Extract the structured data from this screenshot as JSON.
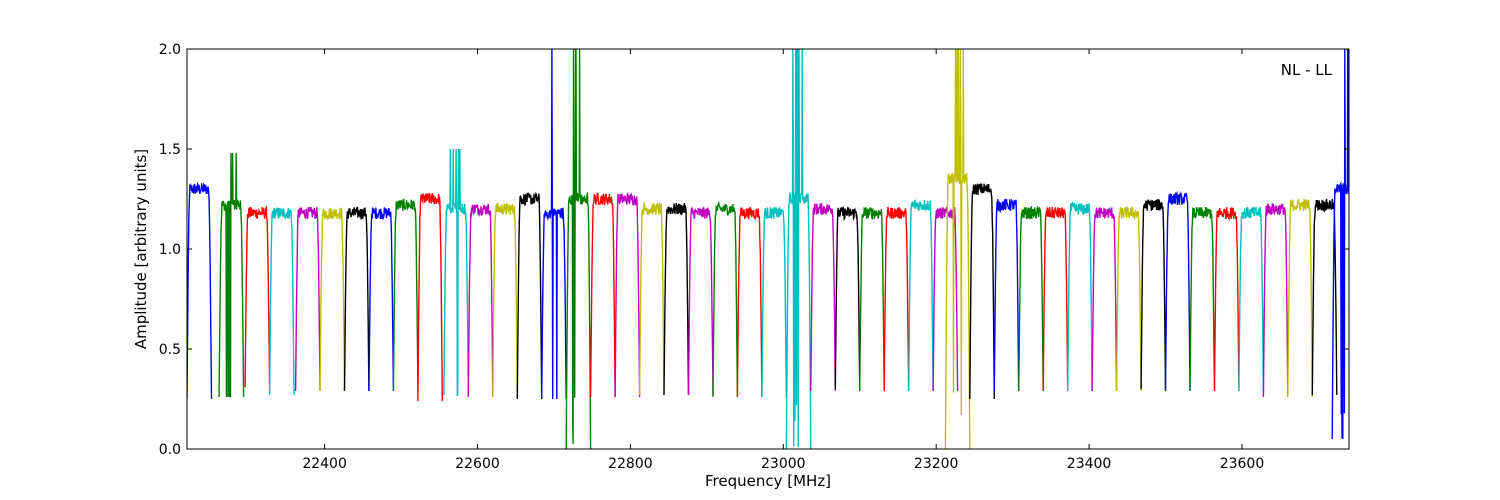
{
  "chart_data": {
    "type": "line",
    "title": "",
    "annotation": "NL - LL",
    "xlabel": "Frequency [MHz]",
    "ylabel": "Amplitude [arbitrary units]",
    "xlim": [
      22220,
      23740
    ],
    "ylim": [
      0.0,
      2.0
    ],
    "xticks": [
      22400,
      22600,
      22800,
      23000,
      23200,
      23400,
      23600
    ],
    "yticks": [
      0.0,
      0.5,
      1.0,
      1.5,
      2.0
    ],
    "xtick_labels": [
      "22400",
      "22600",
      "22800",
      "23000",
      "23200",
      "23400",
      "23600"
    ],
    "ytick_labels": [
      "0.0",
      "0.5",
      "1.0",
      "1.5",
      "2.0"
    ],
    "grid": false,
    "legend": "none",
    "color_cycle": [
      "#0000ff",
      "#008000",
      "#ff0000",
      "#00bfbf",
      "#bf00bf",
      "#bfbf00",
      "#000000"
    ],
    "band_width_mhz": 32,
    "subbands": [
      {
        "color": "blue",
        "start": 22220,
        "level": 1.3,
        "low": 0.25
      },
      {
        "color": "green",
        "start": 22262,
        "level": 1.22,
        "low": 0.26,
        "spike": 1.48
      },
      {
        "color": "red",
        "start": 22296,
        "level": 1.18,
        "low": 0.31
      },
      {
        "color": "cyan",
        "start": 22328,
        "level": 1.18,
        "low": 0.27
      },
      {
        "color": "magenta",
        "start": 22362,
        "level": 1.18,
        "low": 0.29
      },
      {
        "color": "yellow",
        "start": 22394,
        "level": 1.18,
        "low": 0.29
      },
      {
        "color": "black",
        "start": 22426,
        "level": 1.18,
        "low": 0.29
      },
      {
        "color": "blue",
        "start": 22458,
        "level": 1.18,
        "low": 0.29
      },
      {
        "color": "green",
        "start": 22490,
        "level": 1.22,
        "low": 0.29
      },
      {
        "color": "red",
        "start": 22522,
        "level": 1.25,
        "low": 0.24
      },
      {
        "color": "cyan",
        "start": 22556,
        "level": 1.2,
        "low": 0.27,
        "spike": 1.5
      },
      {
        "color": "magenta",
        "start": 22588,
        "level": 1.2,
        "low": 0.26
      },
      {
        "color": "yellow",
        "start": 22620,
        "level": 1.2,
        "low": 0.26
      },
      {
        "color": "black",
        "start": 22652,
        "level": 1.25,
        "low": 0.25
      },
      {
        "color": "blue",
        "start": 22684,
        "level": 1.18,
        "low": 0.25,
        "spike": 2.0
      },
      {
        "color": "green",
        "start": 22716,
        "level": 1.25,
        "low": 0.0,
        "spike": 2.0
      },
      {
        "color": "red",
        "start": 22748,
        "level": 1.25,
        "low": 0.26
      },
      {
        "color": "magenta",
        "start": 22780,
        "level": 1.25,
        "low": 0.26
      },
      {
        "color": "yellow",
        "start": 22812,
        "level": 1.2,
        "low": 0.27
      },
      {
        "color": "black",
        "start": 22844,
        "level": 1.2,
        "low": 0.27
      },
      {
        "color": "magenta",
        "start": 22876,
        "level": 1.18,
        "low": 0.27
      },
      {
        "color": "green",
        "start": 22908,
        "level": 1.2,
        "low": 0.26
      },
      {
        "color": "red",
        "start": 22940,
        "level": 1.18,
        "low": 0.26
      },
      {
        "color": "cyan",
        "start": 22972,
        "level": 1.18,
        "low": 0.26
      },
      {
        "color": "cyan",
        "start": 23004,
        "level": 1.25,
        "low": 0.0,
        "spike": 2.0
      },
      {
        "color": "magenta",
        "start": 23036,
        "level": 1.2,
        "low": 0.29
      },
      {
        "color": "black",
        "start": 23068,
        "level": 1.18,
        "low": 0.3
      },
      {
        "color": "green",
        "start": 23100,
        "level": 1.18,
        "low": 0.29
      },
      {
        "color": "red",
        "start": 23132,
        "level": 1.18,
        "low": 0.29
      },
      {
        "color": "cyan",
        "start": 23164,
        "level": 1.22,
        "low": 0.29
      },
      {
        "color": "magenta",
        "start": 23196,
        "level": 1.18,
        "low": 0.29
      },
      {
        "color": "yellow",
        "start": 23212,
        "level": 1.35,
        "low": 0.0,
        "spike": 2.0
      },
      {
        "color": "black",
        "start": 23244,
        "level": 1.3,
        "low": 0.25
      },
      {
        "color": "blue",
        "start": 23276,
        "level": 1.22,
        "low": 0.29
      },
      {
        "color": "green",
        "start": 23308,
        "level": 1.18,
        "low": 0.29
      },
      {
        "color": "red",
        "start": 23340,
        "level": 1.18,
        "low": 0.29
      },
      {
        "color": "cyan",
        "start": 23372,
        "level": 1.2,
        "low": 0.29
      },
      {
        "color": "magenta",
        "start": 23404,
        "level": 1.18,
        "low": 0.29
      },
      {
        "color": "yellow",
        "start": 23436,
        "level": 1.18,
        "low": 0.29
      },
      {
        "color": "black",
        "start": 23468,
        "level": 1.22,
        "low": 0.3
      },
      {
        "color": "blue",
        "start": 23500,
        "level": 1.25,
        "low": 0.29
      },
      {
        "color": "green",
        "start": 23532,
        "level": 1.18,
        "low": 0.29
      },
      {
        "color": "red",
        "start": 23564,
        "level": 1.18,
        "low": 0.29
      },
      {
        "color": "cyan",
        "start": 23596,
        "level": 1.18,
        "low": 0.29
      },
      {
        "color": "magenta",
        "start": 23628,
        "level": 1.2,
        "low": 0.26
      },
      {
        "color": "yellow",
        "start": 23660,
        "level": 1.22,
        "low": 0.26
      },
      {
        "color": "black",
        "start": 23692,
        "level": 1.22,
        "low": 0.27
      },
      {
        "color": "blue",
        "start": 23718,
        "level": 1.3,
        "low": 0.05,
        "spike": 2.0
      }
    ]
  }
}
